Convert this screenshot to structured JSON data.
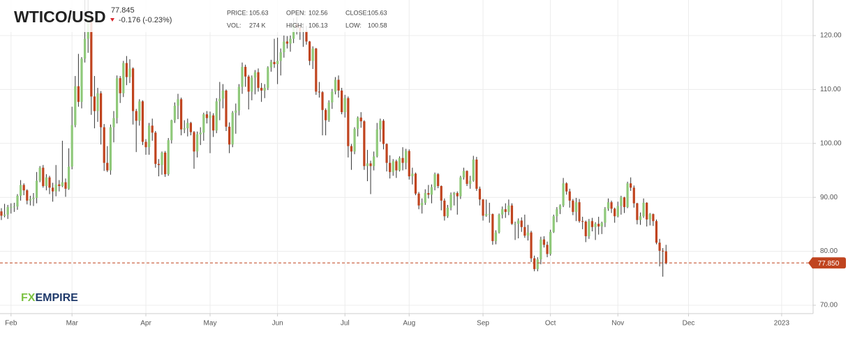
{
  "header": {
    "symbol": "WTICO/USD",
    "last": "77.845",
    "change": "-0.176 (-0.23%)",
    "info": [
      {
        "label": "PRICE:",
        "value": "105.63"
      },
      {
        "label": "OPEN:",
        "value": "102.56"
      },
      {
        "label": "CLOSE:",
        "value": "105.63"
      },
      {
        "label": "VOL:",
        "value": "274 K"
      },
      {
        "label": "HIGH:",
        "value": "106.13"
      },
      {
        "label": "LOW:",
        "value": "100.58"
      }
    ]
  },
  "logo": {
    "fx": "FX",
    "empire": "EMPIRE"
  },
  "chart_data": {
    "type": "candlestick",
    "up_color": "#8fc97a",
    "down_color": "#c0441f",
    "grid": true,
    "ylim": [
      68.45,
      126.59
    ],
    "yticks": [
      {
        "value": 70,
        "label": "70.00"
      },
      {
        "value": 80,
        "label": "80.00"
      },
      {
        "value": 90,
        "label": "90.00"
      },
      {
        "value": 100,
        "label": "100.00"
      },
      {
        "value": 110,
        "label": "110.00"
      },
      {
        "value": 120,
        "label": "120.00"
      }
    ],
    "xlim": [
      -0.43,
      252.8
    ],
    "xticks": [
      {
        "value": 3,
        "label": "Feb"
      },
      {
        "value": 22,
        "label": "Mar"
      },
      {
        "value": 45,
        "label": "Apr"
      },
      {
        "value": 65,
        "label": "May"
      },
      {
        "value": 86,
        "label": "Jun"
      },
      {
        "value": 107,
        "label": "Jul"
      },
      {
        "value": 127,
        "label": "Aug"
      },
      {
        "value": 150,
        "label": "Sep"
      },
      {
        "value": 171,
        "label": "Oct"
      },
      {
        "value": 192,
        "label": "Nov"
      },
      {
        "value": 214,
        "label": "Dec"
      },
      {
        "value": 243,
        "label": "2023"
      }
    ],
    "current_price": {
      "value": 77.85,
      "label": "77.850",
      "color": "#c0441f"
    },
    "ohlc": [
      [
        87.4,
        88.0,
        85.8,
        86.6
      ],
      [
        86.6,
        88.8,
        86.3,
        86.8
      ],
      [
        86.8,
        88.6,
        86.0,
        88.2
      ],
      [
        88.2,
        88.9,
        87.0,
        88.2
      ],
      [
        88.2,
        89.0,
        87.3,
        88.3
      ],
      [
        88.3,
        90.6,
        87.7,
        90.3
      ],
      [
        90.3,
        93.2,
        89.4,
        92.3
      ],
      [
        92.3,
        92.6,
        90.4,
        91.3
      ],
      [
        91.3,
        91.5,
        88.7,
        89.4
      ],
      [
        89.4,
        90.3,
        88.5,
        89.7
      ],
      [
        89.7,
        90.8,
        88.4,
        89.9
      ],
      [
        89.9,
        94.7,
        88.9,
        93.1
      ],
      [
        93.1,
        95.8,
        92.8,
        95.5
      ],
      [
        95.5,
        96.0,
        91.8,
        92.1
      ],
      [
        92.1,
        94.3,
        91.3,
        93.7
      ],
      [
        93.7,
        94.0,
        90.6,
        91.8
      ],
      [
        91.8,
        92.7,
        89.2,
        91.1
      ],
      [
        91.1,
        96.0,
        90.2,
        92.4
      ],
      [
        92.4,
        93.2,
        91.1,
        92.1
      ],
      [
        92.1,
        100.5,
        91.9,
        92.8
      ],
      [
        92.8,
        93.5,
        90.1,
        91.6
      ],
      [
        91.6,
        99.1,
        91.4,
        95.7
      ],
      [
        95.7,
        106.8,
        95.2,
        103.4
      ],
      [
        103.4,
        112.5,
        103.0,
        110.6
      ],
      [
        110.6,
        116.6,
        106.8,
        107.7
      ],
      [
        107.7,
        116.0,
        106.5,
        115.7
      ],
      [
        115.7,
        130.5,
        115.0,
        119.4
      ],
      [
        119.4,
        129.4,
        116.8,
        123.7
      ],
      [
        123.7,
        124.0,
        105.3,
        108.7
      ],
      [
        108.7,
        112.5,
        102.8,
        106.0
      ],
      [
        106.0,
        110.3,
        104.0,
        109.3
      ],
      [
        109.3,
        109.7,
        99.8,
        103.0
      ],
      [
        103.0,
        103.6,
        94.9,
        96.4
      ],
      [
        96.4,
        99.5,
        94.7,
        95.0
      ],
      [
        95.0,
        103.5,
        94.2,
        103.0
      ],
      [
        103.0,
        106.0,
        100.2,
        104.7
      ],
      [
        104.7,
        112.6,
        103.7,
        112.1
      ],
      [
        112.1,
        112.5,
        107.5,
        109.3
      ],
      [
        109.3,
        115.3,
        108.6,
        114.9
      ],
      [
        114.9,
        116.2,
        110.8,
        112.3
      ],
      [
        112.3,
        115.6,
        111.2,
        113.9
      ],
      [
        113.9,
        114.1,
        103.5,
        106.0
      ],
      [
        106.0,
        106.4,
        98.4,
        104.2
      ],
      [
        104.2,
        108.2,
        103.3,
        107.8
      ],
      [
        107.8,
        108.0,
        99.7,
        100.3
      ],
      [
        100.3,
        100.8,
        97.9,
        99.3
      ],
      [
        99.3,
        103.8,
        97.9,
        103.3
      ],
      [
        103.3,
        104.6,
        100.5,
        102.0
      ],
      [
        102.0,
        102.3,
        95.5,
        96.2
      ],
      [
        96.2,
        97.1,
        93.9,
        96.0
      ],
      [
        96.0,
        98.5,
        94.2,
        98.3
      ],
      [
        98.3,
        98.6,
        93.8,
        94.3
      ],
      [
        94.3,
        101.0,
        94.0,
        100.6
      ],
      [
        100.6,
        104.4,
        100.0,
        104.3
      ],
      [
        104.3,
        107.6,
        103.8,
        107.0
      ],
      [
        107.0,
        109.2,
        104.5,
        108.2
      ],
      [
        108.2,
        108.5,
        101.5,
        102.6
      ],
      [
        102.6,
        104.3,
        101.9,
        102.8
      ],
      [
        102.8,
        104.6,
        101.3,
        103.8
      ],
      [
        103.8,
        104.0,
        101.5,
        102.1
      ],
      [
        102.1,
        102.3,
        95.3,
        98.5
      ],
      [
        98.5,
        102.2,
        97.4,
        101.7
      ],
      [
        101.7,
        103.0,
        99.7,
        102.0
      ],
      [
        102.0,
        105.7,
        100.5,
        105.4
      ],
      [
        105.4,
        106.0,
        103.7,
        104.7
      ],
      [
        104.7,
        105.9,
        98.2,
        105.2
      ],
      [
        105.2,
        105.6,
        101.2,
        102.4
      ],
      [
        102.4,
        108.4,
        101.9,
        107.8
      ],
      [
        107.8,
        111.4,
        104.3,
        108.3
      ],
      [
        108.3,
        111.0,
        106.5,
        109.8
      ],
      [
        109.8,
        110.0,
        102.3,
        103.1
      ],
      [
        103.1,
        103.9,
        98.2,
        99.8
      ],
      [
        99.8,
        106.0,
        99.3,
        105.7
      ],
      [
        105.7,
        107.4,
        101.8,
        106.1
      ],
      [
        106.1,
        111.0,
        105.2,
        110.5
      ],
      [
        110.5,
        115.0,
        109.2,
        114.2
      ],
      [
        114.2,
        114.6,
        110.5,
        112.4
      ],
      [
        112.4,
        112.7,
        106.3,
        109.6
      ],
      [
        109.6,
        112.6,
        108.0,
        112.2
      ],
      [
        112.2,
        113.6,
        109.1,
        113.2
      ],
      [
        113.2,
        113.9,
        109.6,
        110.3
      ],
      [
        110.3,
        111.2,
        107.7,
        109.8
      ],
      [
        109.8,
        111.0,
        108.4,
        110.3
      ],
      [
        110.3,
        114.3,
        109.9,
        114.1
      ],
      [
        114.1,
        115.5,
        113.3,
        115.1
      ],
      [
        115.1,
        119.4,
        114.0,
        114.7
      ],
      [
        114.7,
        119.6,
        111.0,
        115.3
      ],
      [
        115.3,
        117.6,
        112.6,
        116.9
      ],
      [
        116.9,
        120.0,
        115.9,
        118.9
      ],
      [
        118.9,
        119.9,
        117.6,
        118.5
      ],
      [
        118.5,
        120.0,
        117.0,
        119.4
      ],
      [
        119.4,
        123.2,
        118.6,
        122.1
      ],
      [
        122.1,
        123.4,
        120.2,
        121.5
      ],
      [
        121.5,
        122.0,
        119.2,
        120.7
      ],
      [
        120.7,
        122.3,
        117.9,
        120.9
      ],
      [
        120.9,
        121.8,
        118.3,
        118.9
      ],
      [
        118.9,
        119.0,
        114.5,
        115.3
      ],
      [
        115.3,
        118.0,
        113.8,
        117.6
      ],
      [
        117.6,
        117.7,
        109.0,
        109.6
      ],
      [
        109.6,
        111.4,
        108.5,
        109.5
      ],
      [
        109.5,
        109.7,
        101.5,
        106.2
      ],
      [
        106.2,
        106.5,
        101.5,
        104.3
      ],
      [
        104.3,
        108.0,
        104.0,
        107.6
      ],
      [
        107.6,
        110.1,
        106.4,
        109.6
      ],
      [
        109.6,
        112.3,
        109.1,
        111.8
      ],
      [
        111.8,
        112.6,
        108.5,
        109.8
      ],
      [
        109.8,
        110.3,
        105.4,
        105.8
      ],
      [
        105.8,
        109.0,
        104.8,
        108.4
      ],
      [
        108.4,
        108.7,
        97.4,
        99.5
      ],
      [
        99.5,
        99.9,
        95.1,
        98.5
      ],
      [
        98.5,
        103.0,
        98.0,
        102.7
      ],
      [
        102.7,
        105.0,
        101.3,
        104.8
      ],
      [
        104.8,
        105.8,
        102.9,
        104.1
      ],
      [
        104.1,
        104.3,
        95.1,
        95.8
      ],
      [
        95.8,
        98.8,
        93.0,
        96.3
      ],
      [
        96.3,
        96.8,
        90.6,
        95.8
      ],
      [
        95.8,
        98.5,
        95.0,
        97.6
      ],
      [
        97.6,
        103.8,
        97.4,
        102.6
      ],
      [
        102.6,
        104.6,
        100.3,
        104.2
      ],
      [
        104.2,
        104.5,
        98.9,
        99.9
      ],
      [
        99.9,
        100.0,
        94.8,
        96.4
      ],
      [
        96.4,
        97.8,
        93.5,
        94.7
      ],
      [
        94.7,
        97.1,
        94.0,
        96.7
      ],
      [
        96.7,
        97.0,
        93.6,
        95.0
      ],
      [
        95.0,
        97.6,
        94.8,
        97.3
      ],
      [
        97.3,
        99.3,
        95.0,
        96.4
      ],
      [
        96.4,
        99.0,
        95.2,
        98.6
      ],
      [
        98.6,
        98.9,
        93.3,
        93.9
      ],
      [
        93.9,
        95.5,
        92.4,
        94.4
      ],
      [
        94.4,
        94.6,
        90.4,
        90.7
      ],
      [
        90.7,
        91.0,
        87.8,
        88.5
      ],
      [
        88.5,
        89.8,
        87.0,
        89.0
      ],
      [
        89.0,
        91.5,
        88.6,
        90.8
      ],
      [
        90.8,
        92.3,
        89.8,
        90.5
      ],
      [
        90.5,
        92.4,
        88.9,
        91.9
      ],
      [
        91.9,
        94.6,
        91.3,
        94.3
      ],
      [
        94.3,
        94.5,
        91.7,
        92.1
      ],
      [
        92.1,
        92.2,
        87.6,
        89.4
      ],
      [
        89.4,
        89.8,
        85.7,
        86.5
      ],
      [
        86.5,
        88.6,
        86.2,
        88.1
      ],
      [
        88.1,
        90.9,
        87.6,
        90.5
      ],
      [
        90.5,
        91.0,
        88.5,
        90.8
      ],
      [
        90.8,
        91.1,
        86.8,
        90.2
      ],
      [
        90.2,
        94.0,
        89.7,
        93.7
      ],
      [
        93.7,
        95.5,
        93.3,
        94.9
      ],
      [
        94.9,
        95.0,
        92.1,
        92.5
      ],
      [
        92.5,
        94.0,
        91.6,
        93.1
      ],
      [
        93.1,
        97.7,
        92.9,
        97.0
      ],
      [
        97.0,
        97.5,
        91.2,
        91.6
      ],
      [
        91.6,
        92.0,
        88.5,
        89.6
      ],
      [
        89.6,
        89.7,
        85.7,
        86.6
      ],
      [
        86.6,
        89.6,
        86.4,
        86.9
      ],
      [
        86.9,
        89.0,
        85.3,
        86.9
      ],
      [
        86.9,
        87.0,
        81.2,
        81.9
      ],
      [
        81.9,
        83.9,
        81.3,
        83.5
      ],
      [
        83.5,
        87.0,
        83.3,
        86.8
      ],
      [
        86.8,
        88.3,
        86.1,
        87.8
      ],
      [
        87.8,
        88.9,
        86.2,
        87.3
      ],
      [
        87.3,
        89.6,
        86.7,
        88.5
      ],
      [
        88.5,
        88.9,
        84.9,
        85.1
      ],
      [
        85.1,
        85.5,
        82.1,
        85.1
      ],
      [
        85.1,
        86.1,
        82.4,
        85.7
      ],
      [
        85.7,
        86.3,
        83.6,
        84.5
      ],
      [
        84.5,
        86.8,
        82.5,
        82.9
      ],
      [
        82.9,
        84.9,
        82.0,
        83.5
      ],
      [
        83.5,
        83.8,
        78.0,
        78.7
      ],
      [
        78.7,
        79.2,
        76.3,
        76.7
      ],
      [
        76.7,
        78.9,
        76.3,
        78.5
      ],
      [
        78.5,
        82.7,
        77.6,
        82.2
      ],
      [
        82.2,
        82.8,
        80.7,
        81.2
      ],
      [
        81.2,
        81.8,
        78.9,
        79.5
      ],
      [
        79.5,
        84.0,
        79.2,
        83.6
      ],
      [
        83.6,
        86.8,
        83.4,
        86.5
      ],
      [
        86.5,
        88.2,
        85.4,
        87.8
      ],
      [
        87.8,
        88.7,
        86.9,
        88.5
      ],
      [
        88.5,
        93.6,
        88.2,
        92.6
      ],
      [
        92.6,
        92.8,
        90.5,
        91.1
      ],
      [
        91.1,
        91.6,
        88.1,
        89.4
      ],
      [
        89.4,
        89.7,
        86.7,
        87.3
      ],
      [
        87.3,
        89.9,
        85.6,
        89.1
      ],
      [
        89.1,
        89.7,
        85.3,
        85.6
      ],
      [
        85.6,
        86.4,
        84.1,
        85.5
      ],
      [
        85.5,
        85.7,
        81.7,
        82.8
      ],
      [
        82.8,
        86.0,
        82.3,
        85.6
      ],
      [
        85.6,
        86.2,
        83.7,
        84.5
      ],
      [
        84.5,
        85.4,
        82.1,
        85.1
      ],
      [
        85.1,
        86.4,
        83.1,
        84.6
      ],
      [
        84.6,
        85.5,
        83.2,
        85.3
      ],
      [
        85.3,
        88.2,
        84.5,
        87.9
      ],
      [
        87.9,
        89.8,
        87.5,
        89.1
      ],
      [
        89.1,
        89.4,
        87.1,
        87.9
      ],
      [
        87.9,
        88.1,
        85.3,
        86.5
      ],
      [
        86.5,
        89.2,
        86.3,
        88.4
      ],
      [
        88.4,
        90.3,
        86.8,
        90.0
      ],
      [
        90.0,
        90.1,
        87.1,
        88.2
      ],
      [
        88.2,
        92.9,
        88.0,
        92.6
      ],
      [
        92.6,
        93.7,
        91.2,
        91.8
      ],
      [
        91.8,
        92.2,
        88.1,
        88.9
      ],
      [
        88.9,
        89.0,
        85.0,
        85.8
      ],
      [
        85.8,
        87.2,
        84.9,
        86.5
      ],
      [
        86.5,
        89.8,
        86.2,
        89.0
      ],
      [
        89.0,
        89.1,
        84.6,
        85.9
      ],
      [
        85.9,
        87.1,
        84.8,
        86.9
      ],
      [
        86.9,
        87.0,
        84.7,
        85.6
      ],
      [
        85.6,
        85.9,
        81.3,
        81.6
      ],
      [
        81.6,
        82.3,
        77.2,
        80.1
      ],
      [
        80.1,
        80.6,
        75.3,
        80.0
      ],
      [
        80.0,
        81.2,
        77.6,
        77.9
      ]
    ]
  }
}
